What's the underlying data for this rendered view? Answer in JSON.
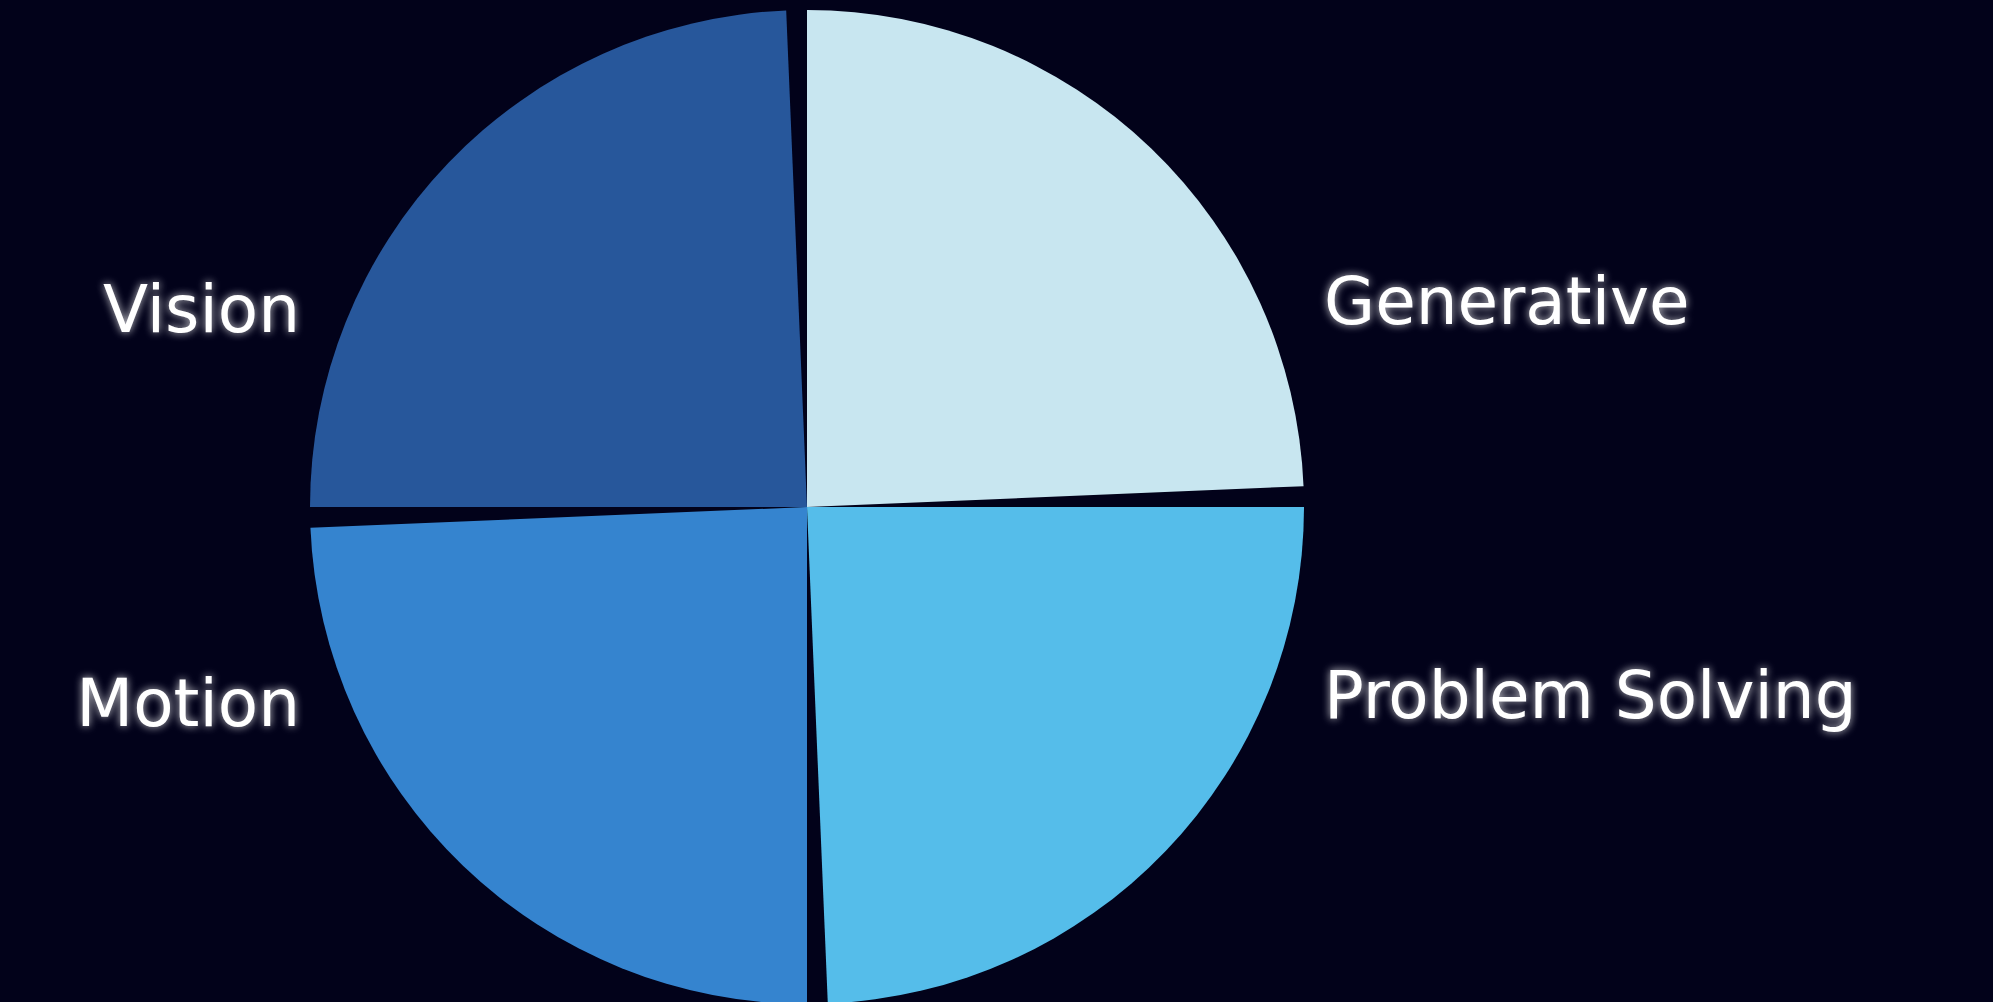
{
  "chart_data": {
    "type": "pie",
    "categories": [
      "Generative",
      "Problem Solving",
      "Motion",
      "Vision"
    ],
    "values": [
      25,
      25,
      25,
      25
    ],
    "colors": [
      "#c8e6f0",
      "#55bdea",
      "#3584cf",
      "#27579b"
    ]
  }
}
